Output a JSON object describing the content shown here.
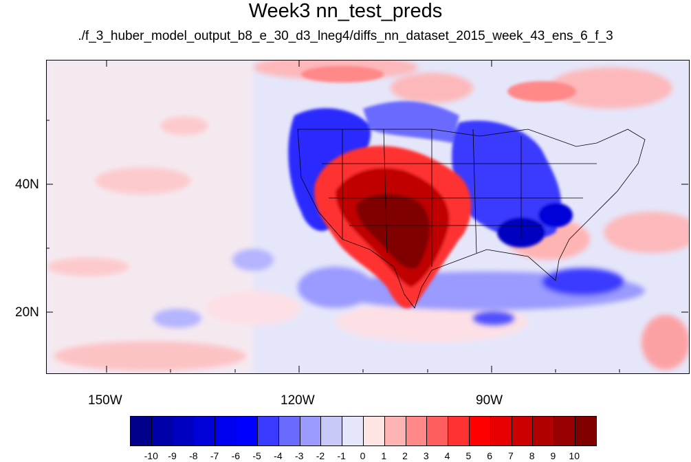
{
  "title": "Week3 nn_test_preds",
  "subtitle": "./f_3_huber_model_output_b8_e_30_d3_lneg4/diffs_nn_dataset_2015_week_43_ens_6_f_3",
  "axes": {
    "x_tick_labels": [
      "150W",
      "120W",
      "90W"
    ],
    "y_tick_labels": [
      "40N",
      "20N"
    ]
  },
  "colorbar": {
    "labels": [
      "-10",
      "-9",
      "-8",
      "-7",
      "-6",
      "-5",
      "-4",
      "-3",
      "-2",
      "-1",
      "0",
      "1",
      "2",
      "3",
      "4",
      "5",
      "6",
      "7",
      "8",
      "9",
      "10"
    ],
    "colors": [
      "#00008b",
      "#0000a8",
      "#0000c0",
      "#0000d8",
      "#0000f0",
      "#0000ff",
      "#3a3aff",
      "#6a6aff",
      "#9a9aff",
      "#c8c8f8",
      "#e6e6fa",
      "#ffe4e4",
      "#ffb4b4",
      "#ff8888",
      "#ff5e5e",
      "#ff3232",
      "#ff0000",
      "#e60000",
      "#cc0000",
      "#b00000",
      "#960000",
      "#800000"
    ]
  },
  "palette": {
    "background_near_zero": "#e6e6fa",
    "warm_anomaly": "#cc0000",
    "cold_anomaly": "#1a1aff"
  }
}
